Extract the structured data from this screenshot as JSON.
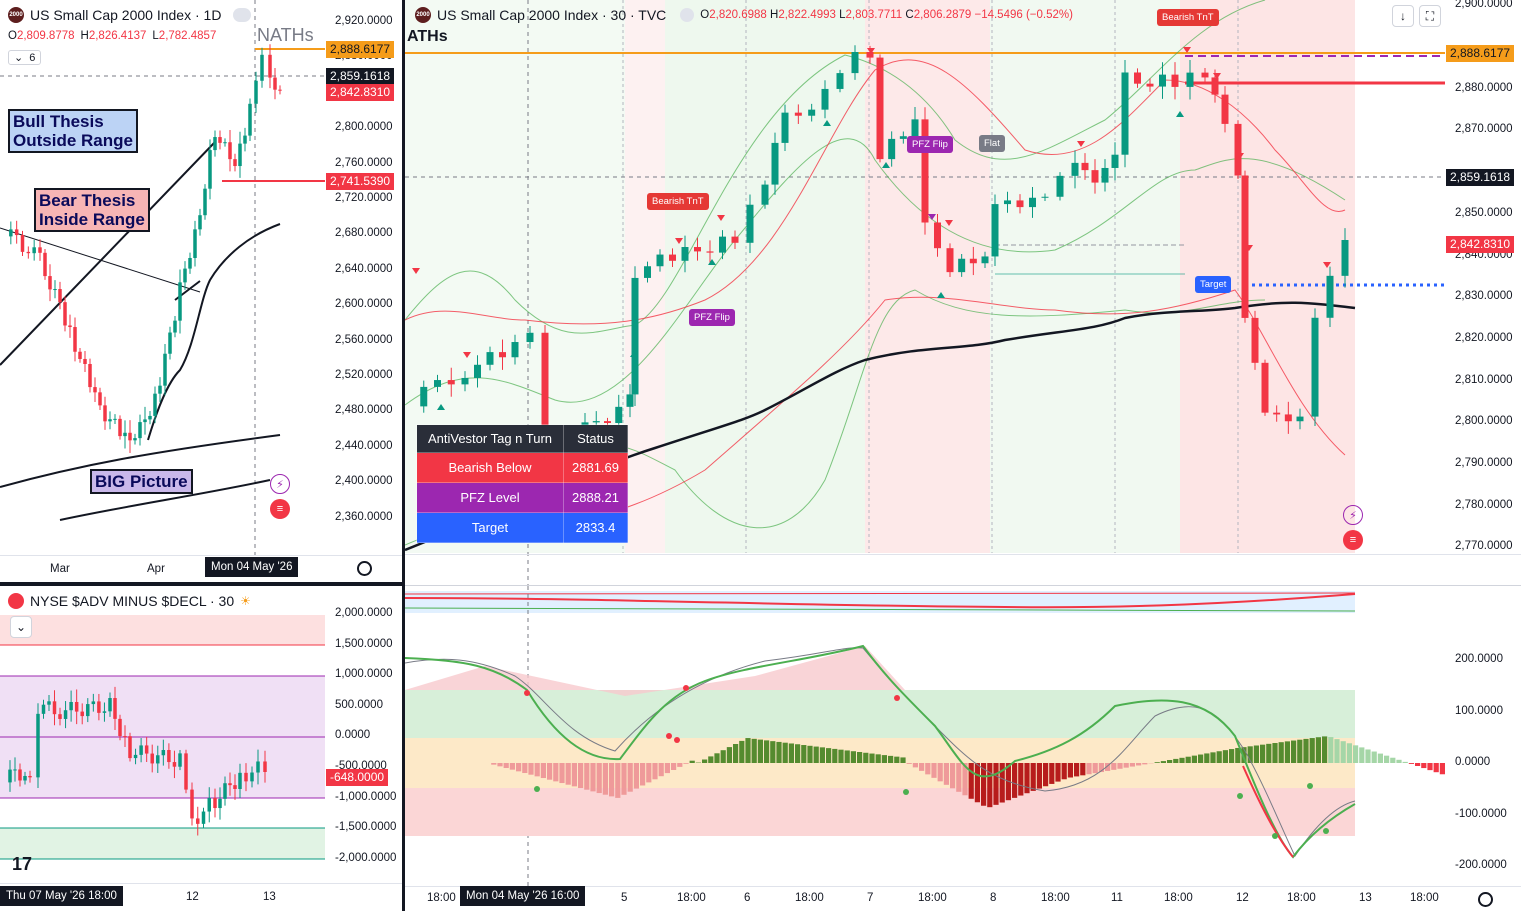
{
  "daily": {
    "symbol": "US Small Cap 2000 Index · 1D",
    "ohlc": [
      {
        "k": "O",
        "v": "2,809.8778"
      },
      {
        "k": "H",
        "v": "2,826.4137"
      },
      {
        "k": "L",
        "v": "2,782.4857"
      }
    ],
    "indicator_count": "6",
    "naths_label": "NATHs",
    "price_axis": [
      "2,920.0000",
      "2,880.0000",
      "2,840.0000",
      "2,800.0000",
      "2,760.0000",
      "2,720.0000",
      "2,680.0000",
      "2,640.0000",
      "2,600.0000",
      "2,560.0000",
      "2,520.0000",
      "2,480.0000",
      "2,440.0000",
      "2,400.0000",
      "2,360.0000"
    ],
    "tags": {
      "ath": "2,888.6177",
      "crosshair": "2,859.1618",
      "last": "2,842.8310",
      "level": "2,741.5390"
    },
    "time_axis": [
      "Mar",
      "Apr"
    ],
    "time_cursor": "Mon 04 May '26",
    "bull_thesis": [
      "Bull Thesis",
      "Outside Range"
    ],
    "bear_thesis": [
      "Bear Thesis",
      "Inside Range"
    ],
    "big_picture": "BIG Picture"
  },
  "adv": {
    "title": "NYSE $ADV MINUS $DECL · 30",
    "price_axis": [
      "2,000.0000",
      "1,500.0000",
      "1,000.0000",
      "500.0000",
      "0.0000",
      "-500.0000",
      "-1,000.0000",
      "-1,500.0000",
      "-2,000.0000"
    ],
    "last_tag": "-648.0000",
    "time_axis": [
      "12",
      "13"
    ],
    "time_cursor": "Thu 07 May '26   18:00"
  },
  "main": {
    "symbol": "US Small Cap 2000 Index · 30 · TVC",
    "ohlc": [
      {
        "k": "O",
        "v": "2,820.6988"
      },
      {
        "k": "H",
        "v": "2,822.4993"
      },
      {
        "k": "L",
        "v": "2,803.7711"
      },
      {
        "k": "C",
        "v": "2,806.2879"
      },
      {
        "k": "",
        "v": "−14.5496 (−0.52%)"
      }
    ],
    "aths_label": "ATHs",
    "price_axis": [
      "2,900.0000",
      "2,880.0000",
      "2,870.0000",
      "2,850.0000",
      "2,840.0000",
      "2,830.0000",
      "2,820.0000",
      "2,810.0000",
      "2,800.0000",
      "2,790.0000",
      "2,780.0000",
      "2,770.0000"
    ],
    "tags": {
      "ath": "2,888.6177",
      "crosshair": "2,859.1618",
      "last": "2,842.8310"
    },
    "signals": {
      "bearish_tnt_1": "Bearish TnT",
      "bearish_tnt_2": "Bearish TnT",
      "pfz_flip_1": "PFZ Flip",
      "pfz_flip_2": "PFZ Flip",
      "flat": "Flat",
      "target": "Target"
    },
    "table": {
      "header": [
        "AntiVestor Tag n Turn",
        "Status"
      ],
      "rows": [
        {
          "label": "Bearish Below",
          "value": "2881.69",
          "color": "#f23645"
        },
        {
          "label": "PFZ Level",
          "value": "2888.21",
          "color": "#9c27b0"
        },
        {
          "label": "Target",
          "value": "2833.4",
          "color": "#2962ff"
        }
      ]
    },
    "time_axis": [
      "18:00",
      "5",
      "18:00",
      "6",
      "18:00",
      "7",
      "18:00",
      "8",
      "18:00",
      "11",
      "18:00",
      "12",
      "18:00",
      "13",
      "18:00"
    ],
    "time_cursor": "Mon 04 May '26   16:00"
  },
  "oscillator": {
    "axis": [
      "200.0000",
      "100.0000",
      "0.0000",
      "-100.0000",
      "-200.0000"
    ]
  },
  "colors": {
    "up": "#089981",
    "down": "#f23645",
    "ath": "#f59c1a",
    "dark": "#131722"
  }
}
